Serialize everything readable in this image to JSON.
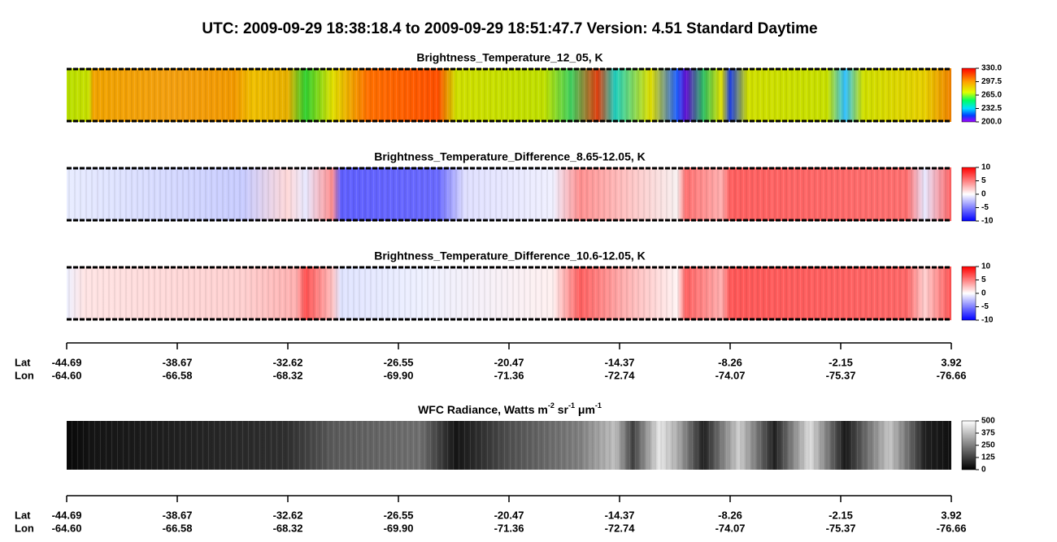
{
  "title": "UTC:  2009-09-29   18:38:18.4  to  2009-09-29   18:51:47.7    Version: 4.51  Standard Daytime",
  "panels": [
    {
      "title": "Brightness_Temperature_12_05, K",
      "colorbar": [
        "330.0",
        "297.5",
        "265.0",
        "232.5",
        "200.0"
      ]
    },
    {
      "title": "Brightness_Temperature_Difference_8.65-12.05, K",
      "colorbar": [
        "10",
        "5",
        "0",
        "-5",
        "-10"
      ]
    },
    {
      "title": "Brightness_Temperature_Difference_10.6-12.05, K",
      "colorbar": [
        "10",
        "5",
        "0",
        "-5",
        "-10"
      ]
    },
    {
      "title": {
        "text": "WFC Radiance, Watts m",
        "sup1": "-2",
        "mid1": " sr",
        "sup2": "-1",
        "mid2": " μm",
        "sup3": "-1"
      },
      "colorbar": [
        "500",
        "375",
        "250",
        "125",
        "0"
      ]
    }
  ],
  "axes": [
    {
      "lat_label": "Lat",
      "lon_label": "Lon",
      "lat": [
        "-44.69",
        "-38.67",
        "-32.62",
        "-26.55",
        "-20.47",
        "-14.37",
        "-8.26",
        "-2.15",
        "3.92"
      ],
      "lon": [
        "-64.60",
        "-66.58",
        "-68.32",
        "-69.90",
        "-71.36",
        "-72.74",
        "-74.07",
        "-75.37",
        "-76.66"
      ]
    },
    {
      "lat_label": "Lat",
      "lon_label": "Lon",
      "lat": [
        "-44.69",
        "-38.67",
        "-32.62",
        "-26.55",
        "-20.47",
        "-14.37",
        "-8.26",
        "-2.15",
        "3.92"
      ],
      "lon": [
        "-64.60",
        "-66.58",
        "-68.32",
        "-69.90",
        "-71.36",
        "-72.74",
        "-74.07",
        "-75.37",
        "-76.66"
      ]
    }
  ]
}
